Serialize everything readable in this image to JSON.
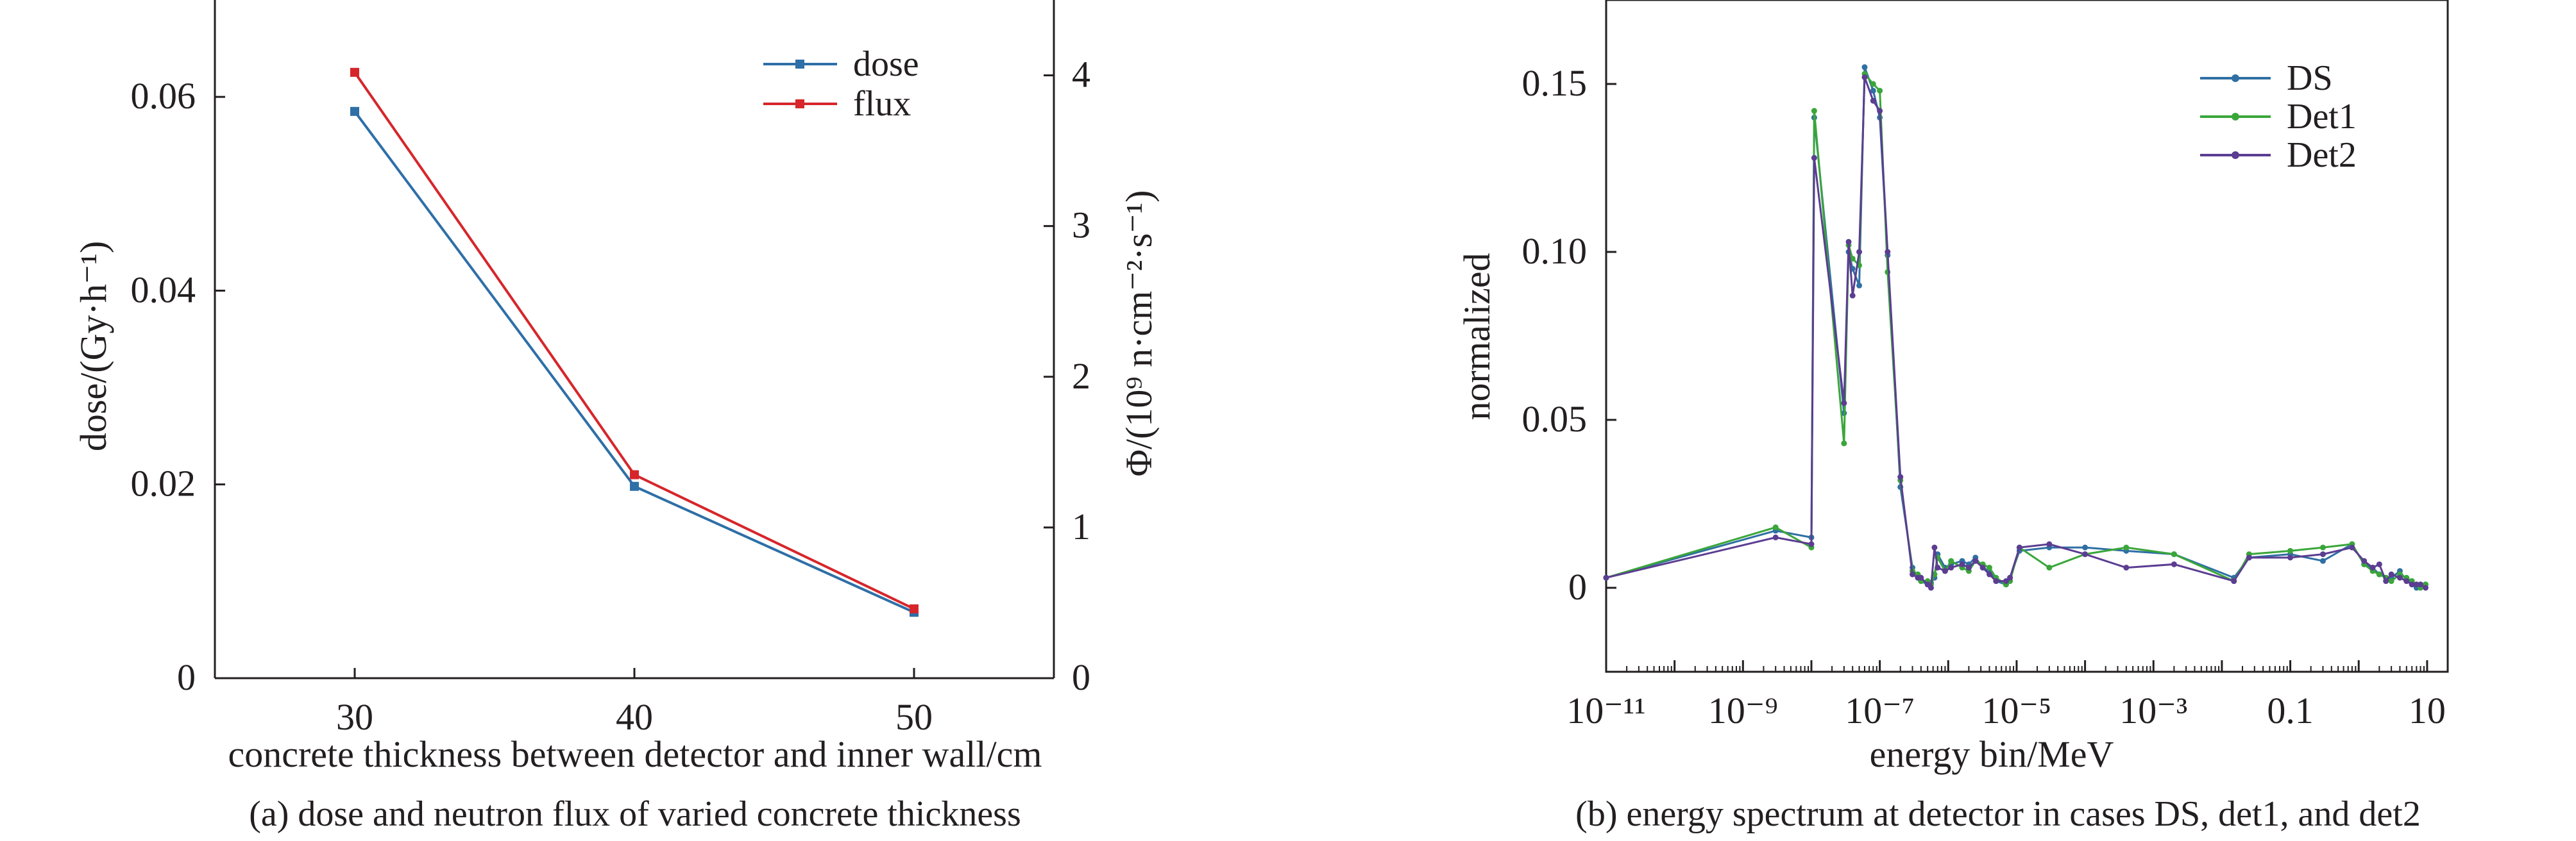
{
  "panels": {
    "a": {
      "caption": "(a) dose and neutron flux of varied concrete thickness",
      "xlabel": "concrete thickness between detector and inner wall/cm",
      "ylabel": "dose/(Gy·h⁻¹)",
      "y2label": "Φ/(10⁹ n·cm⁻²·s⁻¹)"
    },
    "b": {
      "caption": "(b) energy spectrum at detector in cases DS, det1, and det2",
      "xlabel": "energy bin/MeV",
      "ylabel": "normalized"
    }
  },
  "chart_data": [
    {
      "type": "line",
      "xlabel": "concrete thickness between detector and inner wall/cm",
      "ylabel": "dose/(Gy·h⁻¹)",
      "y2label": "Φ/(10⁹ n·cm⁻²·s⁻¹)",
      "x": [
        30,
        40,
        50
      ],
      "xlim": [
        25,
        55
      ],
      "xticks": [
        "30",
        "40",
        "50"
      ],
      "ylim": [
        0,
        0.07
      ],
      "yticks": [
        0,
        0.02,
        0.04,
        0.06
      ],
      "yticklabels": [
        "0",
        "0.02",
        "0.04",
        "0.06"
      ],
      "y2lim": [
        0,
        4.5
      ],
      "y2ticks": [
        "0",
        "1",
        "2",
        "3",
        "4"
      ],
      "legend_position": "top-right",
      "series": [
        {
          "name": "dose",
          "axis": "left",
          "color": "#2e6fa7",
          "values": [
            0.0585,
            0.0198,
            0.0068
          ]
        },
        {
          "name": "flux",
          "axis": "right",
          "color": "#d6262b",
          "values": [
            4.02,
            1.35,
            0.46
          ]
        }
      ]
    },
    {
      "type": "line",
      "xlabel": "energy bin/MeV",
      "ylabel": "normalized",
      "x_scale": "log",
      "xlim": [
        1e-11,
        20
      ],
      "xticks": [
        "10⁻¹¹",
        "10⁻⁹",
        "10⁻⁷",
        "10⁻⁵",
        "10⁻³",
        "0.1",
        "10"
      ],
      "ylim": [
        -0.025,
        0.175
      ],
      "yticks": [
        0,
        0.05,
        0.1,
        0.15
      ],
      "yticklabels": [
        "0",
        "0.05",
        "0.10",
        "0.15"
      ],
      "legend_position": "top-right",
      "series": [
        {
          "name": "DS",
          "color": "#2f6fa3",
          "x": [
            1e-11,
            3e-09,
            1e-08,
            1.1e-08,
            3e-08,
            3.5e-08,
            4e-08,
            5e-08,
            6e-08,
            8e-08,
            1e-07,
            1.3e-07,
            2e-07,
            3e-07,
            3.6e-07,
            4e-07,
            5e-07,
            5.6e-07,
            6.3e-07,
            7e-07,
            9e-07,
            1.1e-06,
            1.6e-06,
            2e-06,
            2.5e-06,
            3.2e-06,
            4e-06,
            5e-06,
            7e-06,
            8e-06,
            1.1e-05,
            3e-05,
            0.0001,
            0.0004,
            0.002,
            0.015,
            0.025,
            0.1,
            0.3,
            0.8,
            1.2,
            1.6,
            2,
            2.5,
            3,
            4,
            5,
            6,
            7,
            8,
            9.5
          ],
          "values": [
            0.003,
            0.017,
            0.015,
            0.14,
            0.052,
            0.1,
            0.095,
            0.09,
            0.155,
            0.148,
            0.14,
            0.099,
            0.03,
            0.006,
            0.003,
            0.002,
            0.001,
            0.0015,
            0.003,
            0.01,
            0.006,
            0.007,
            0.008,
            0.007,
            0.009,
            0.006,
            0.005,
            0.002,
            0.001,
            0.003,
            0.011,
            0.012,
            0.012,
            0.011,
            0.01,
            0.003,
            0.009,
            0.01,
            0.008,
            0.013,
            0.007,
            0.006,
            0.004,
            0.003,
            0.003,
            0.005,
            0.002,
            0.001,
            0.0,
            0.001,
            0.001
          ]
        },
        {
          "name": "Det1",
          "color": "#3aa63a",
          "x": [
            1e-11,
            3e-09,
            1e-08,
            1.1e-08,
            3e-08,
            3.5e-08,
            4e-08,
            5e-08,
            6e-08,
            8e-08,
            1e-07,
            1.3e-07,
            2e-07,
            3e-07,
            3.6e-07,
            4e-07,
            5e-07,
            5.6e-07,
            6.3e-07,
            7e-07,
            9e-07,
            1.1e-06,
            1.6e-06,
            2e-06,
            2.5e-06,
            3.2e-06,
            4e-06,
            5e-06,
            7e-06,
            8e-06,
            1.1e-05,
            3e-05,
            0.0001,
            0.0004,
            0.002,
            0.015,
            0.025,
            0.1,
            0.3,
            0.8,
            1.2,
            1.6,
            2,
            2.5,
            3,
            4,
            5,
            6,
            7,
            8,
            9.5
          ],
          "values": [
            0.003,
            0.018,
            0.012,
            0.142,
            0.043,
            0.102,
            0.098,
            0.096,
            0.153,
            0.15,
            0.148,
            0.094,
            0.032,
            0.005,
            0.004,
            0.002,
            0.002,
            0.001,
            0.004,
            0.009,
            0.005,
            0.008,
            0.006,
            0.005,
            0.008,
            0.007,
            0.006,
            0.003,
            0.001,
            0.002,
            0.012,
            0.006,
            0.01,
            0.012,
            0.01,
            0.002,
            0.01,
            0.011,
            0.012,
            0.013,
            0.007,
            0.005,
            0.004,
            0.003,
            0.002,
            0.004,
            0.003,
            0.002,
            0.001,
            0.0,
            0.001
          ]
        },
        {
          "name": "Det2",
          "color": "#5b3d91",
          "x": [
            1e-11,
            3e-09,
            1e-08,
            1.1e-08,
            3e-08,
            3.5e-08,
            4e-08,
            5e-08,
            6e-08,
            8e-08,
            1e-07,
            1.3e-07,
            2e-07,
            3e-07,
            3.6e-07,
            4e-07,
            5e-07,
            5.6e-07,
            6.3e-07,
            7e-07,
            9e-07,
            1.1e-06,
            1.6e-06,
            2e-06,
            2.5e-06,
            3.2e-06,
            4e-06,
            5e-06,
            7e-06,
            8e-06,
            1.1e-05,
            3e-05,
            0.0001,
            0.0004,
            0.002,
            0.015,
            0.025,
            0.1,
            0.3,
            0.8,
            1.2,
            1.6,
            2,
            2.5,
            3,
            4,
            5,
            6,
            7,
            8,
            9.5
          ],
          "values": [
            0.003,
            0.015,
            0.013,
            0.128,
            0.055,
            0.103,
            0.087,
            0.1,
            0.152,
            0.145,
            0.142,
            0.1,
            0.033,
            0.004,
            0.003,
            0.003,
            0.001,
            0.0,
            0.012,
            0.006,
            0.005,
            0.006,
            0.007,
            0.006,
            0.008,
            0.006,
            0.004,
            0.002,
            0.002,
            0.003,
            0.012,
            0.013,
            0.01,
            0.006,
            0.007,
            0.002,
            0.009,
            0.009,
            0.01,
            0.012,
            0.008,
            0.006,
            0.007,
            0.002,
            0.004,
            0.003,
            0.002,
            0.001,
            0.001,
            0.001,
            0.0
          ]
        }
      ]
    }
  ]
}
